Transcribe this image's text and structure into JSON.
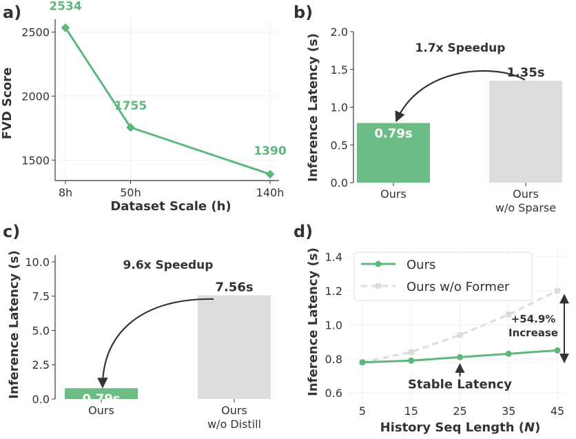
{
  "chart_data": [
    {
      "panel": "a)",
      "type": "line",
      "title": "",
      "xlabel": "Dataset Scale (h)",
      "ylabel": "FVD Score",
      "x": [
        8,
        50,
        140
      ],
      "x_tick_labels": [
        "8h",
        "50h",
        "140h"
      ],
      "values": [
        2534,
        1755,
        1390
      ],
      "data_labels": [
        "2534",
        "1755",
        "1390"
      ],
      "y_ticks": [
        1500,
        2000,
        2500
      ],
      "y_tick_labels": [
        "1500",
        "2000",
        "2500"
      ],
      "ylim": [
        1340,
        2600
      ],
      "color": "#5cb87a"
    },
    {
      "panel": "b)",
      "type": "bar",
      "title": "1.7x Speedup",
      "xlabel": "",
      "ylabel": "Inference Latency (s)",
      "categories": [
        "Ours",
        "Ours\nw/o Sparse"
      ],
      "category_lines": [
        [
          "Ours"
        ],
        [
          "Ours",
          "w/o Sparse"
        ]
      ],
      "values": [
        0.79,
        1.35
      ],
      "data_labels": [
        "0.79s",
        "1.35s"
      ],
      "colors": [
        "#6cbd85",
        "#dcdcdc"
      ],
      "y_ticks": [
        0.0,
        0.5,
        1.0,
        1.5,
        2.0
      ],
      "y_tick_labels": [
        "0.0",
        "0.5",
        "1.0",
        "1.5",
        "2.0"
      ],
      "ylim": [
        0,
        2.0
      ]
    },
    {
      "panel": "c)",
      "type": "bar",
      "title": "9.6x Speedup",
      "xlabel": "",
      "ylabel": "Inference Latency (s)",
      "categories": [
        "Ours",
        "Ours\nw/o Distill"
      ],
      "category_lines": [
        [
          "Ours"
        ],
        [
          "Ours",
          "w/o Distill"
        ]
      ],
      "values": [
        0.79,
        7.56
      ],
      "data_labels": [
        "0.79s",
        "7.56s"
      ],
      "colors": [
        "#6cbd85",
        "#dcdcdc"
      ],
      "y_ticks": [
        0.0,
        2.5,
        5.0,
        7.5,
        10.0
      ],
      "y_tick_labels": [
        "0.0",
        "2.5",
        "5.0",
        "7.5",
        "10.0"
      ],
      "ylim": [
        0,
        10.5
      ]
    },
    {
      "panel": "d)",
      "type": "line",
      "title": "",
      "xlabel": "History Seq Length (",
      "xlabel_var": "N",
      "xlabel_end": ")",
      "ylabel": "Inference Latency (s)",
      "x": [
        5,
        15,
        25,
        35,
        45
      ],
      "x_tick_labels": [
        "5",
        "15",
        "25",
        "35",
        "45"
      ],
      "series": [
        {
          "name": "Ours",
          "values": [
            0.78,
            0.79,
            0.81,
            0.83,
            0.85
          ],
          "color": "#5cb87a",
          "style": "solid"
        },
        {
          "name": "Ours w/o Former",
          "values": [
            0.78,
            0.84,
            0.94,
            1.06,
            1.2
          ],
          "color": "#dcdcdc",
          "style": "dashed"
        }
      ],
      "y_ticks": [
        0.6,
        0.8,
        1.0,
        1.2,
        1.4
      ],
      "y_tick_labels": [
        "0.6",
        "0.8",
        "1.0",
        "1.2",
        "1.4"
      ],
      "ylim": [
        0.52,
        1.45
      ],
      "annotations": {
        "increase_lines": [
          "+54.9%",
          "Increase"
        ],
        "stable": "Stable Latency"
      },
      "legend": "top-left"
    }
  ]
}
